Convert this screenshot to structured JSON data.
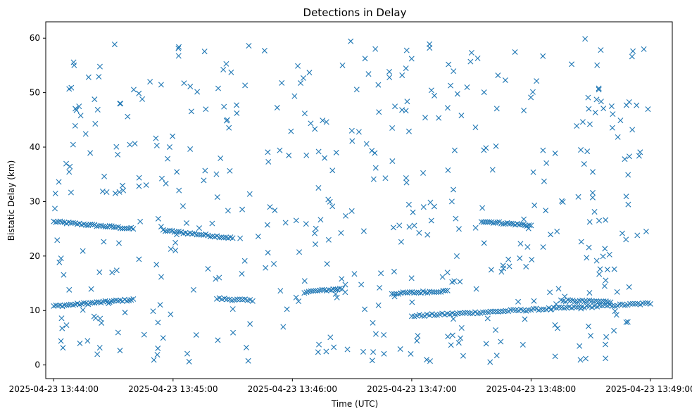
{
  "chart_data": {
    "type": "scatter",
    "title": "Detections in Delay",
    "xlabel": "Time (UTC)",
    "ylabel": "Bistatic Delay (km)",
    "marker": "x",
    "color": "#1f77b4",
    "grid": false,
    "xlim": [
      "2025-04-23 13:43:56",
      "2025-04-23 13:49:11"
    ],
    "ylim": [
      -2.5,
      63
    ],
    "xticks": [
      "2025-04-23 13:44:00",
      "2025-04-23 13:45:00",
      "2025-04-23 13:46:00",
      "2025-04-23 13:47:00",
      "2025-04-23 13:48:00",
      "2025-04-23 13:49:00"
    ],
    "yticks": [
      0,
      10,
      20,
      30,
      40,
      50,
      60
    ],
    "series": [
      {
        "tracks": [
          {
            "start": "2025-04-23 13:44:00",
            "end": "2025-04-23 13:44:40",
            "delay_start": 26.3,
            "delay_end": 25.0,
            "count": 38
          },
          {
            "start": "2025-04-23 13:44:55",
            "end": "2025-04-23 13:45:30",
            "delay_start": 24.7,
            "delay_end": 23.3,
            "count": 32
          },
          {
            "start": "2025-04-23 13:44:00",
            "end": "2025-04-23 13:44:40",
            "delay_start": 10.8,
            "delay_end": 12.0,
            "count": 38
          },
          {
            "start": "2025-04-23 13:45:22",
            "end": "2025-04-23 13:45:40",
            "delay_start": 12.2,
            "delay_end": 11.8,
            "count": 15
          },
          {
            "start": "2025-04-23 13:46:06",
            "end": "2025-04-23 13:46:25",
            "delay_start": 13.4,
            "delay_end": 14.0,
            "count": 18
          },
          {
            "start": "2025-04-23 13:46:50",
            "end": "2025-04-23 13:47:18",
            "delay_start": 13.1,
            "delay_end": 13.6,
            "count": 26
          },
          {
            "start": "2025-04-23 13:47:00",
            "end": "2025-04-23 13:49:00",
            "delay_start": 9.0,
            "delay_end": 11.3,
            "count": 95
          },
          {
            "start": "2025-04-23 13:47:35",
            "end": "2025-04-23 13:48:00",
            "delay_start": 26.4,
            "delay_end": 25.6,
            "count": 26
          },
          {
            "start": "2025-04-23 13:48:15",
            "end": "2025-04-23 13:48:40",
            "delay_start": 11.8,
            "delay_end": 11.6,
            "count": 22
          }
        ],
        "clutter": {
          "count": 470,
          "delay_range": [
            0.5,
            60
          ],
          "time_range": [
            "2025-04-23 13:44:00",
            "2025-04-23 13:49:00"
          ]
        }
      }
    ]
  }
}
